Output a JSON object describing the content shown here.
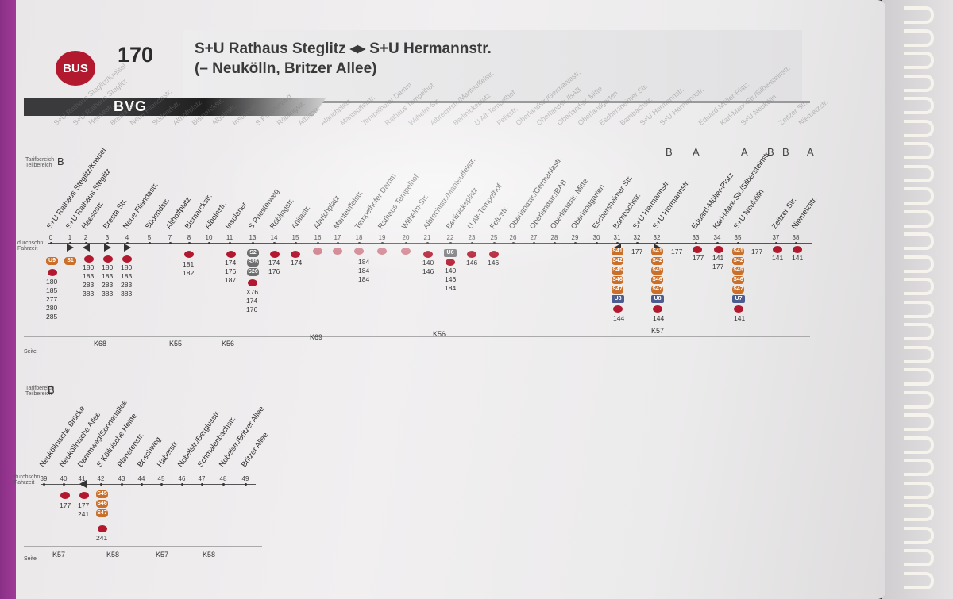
{
  "header": {
    "mode_badge": "BUS",
    "line_number": "170",
    "route_line1": "S+U Rathaus Steglitz ◂▸ S+U Hermannstr.",
    "route_line2": "(– Neukölln, Britzer Allee)",
    "operator": "BVG"
  },
  "labels": {
    "tarif": "Tarifbereich\nTeilbereich",
    "fahrzeit": "durchschn.\nFahrzeit",
    "seite": "Seite"
  },
  "section1": {
    "tarif_zone": "B",
    "top_zones": [
      "B",
      "A",
      "A",
      "B",
      "B",
      "A"
    ],
    "stops": [
      {
        "name": "S+U Rathaus Steglitz/Kreisel",
        "time": "0"
      },
      {
        "name": "S+U Rathaus Steglitz",
        "time": "1"
      },
      {
        "name": "Heesestr.",
        "time": "2"
      },
      {
        "name": "Bresta Str.",
        "time": "3"
      },
      {
        "name": "Neue Filandastr.",
        "time": "4"
      },
      {
        "name": "Südendstr.",
        "time": "5"
      },
      {
        "name": "Althoffplatz",
        "time": "7"
      },
      {
        "name": "Bismarckstr.",
        "time": "8"
      },
      {
        "name": "Alboinstr.",
        "time": "10"
      },
      {
        "name": "Insulaner",
        "time": "11"
      },
      {
        "name": "S Priesterweg",
        "time": "13"
      },
      {
        "name": "Röblingstr.",
        "time": "14"
      },
      {
        "name": "Attilastr.",
        "time": "15"
      },
      {
        "name": "Alarichplatz",
        "time": "16"
      },
      {
        "name": "Manteuffelstr.",
        "time": "17"
      },
      {
        "name": "Tempelhofer Damm",
        "time": "18"
      },
      {
        "name": "Rathaus Tempelhof",
        "time": "19"
      },
      {
        "name": "Wilhelm-Str.",
        "time": "20"
      },
      {
        "name": "Albrechtstr./Manteuffelstr.",
        "time": "21"
      },
      {
        "name": "Berlinickeplatz",
        "time": "22"
      },
      {
        "name": "U Alt-Tempelhof",
        "time": "23"
      },
      {
        "name": "Felixstr.",
        "time": "25"
      },
      {
        "name": "Oberlandstr./Germaniastr.",
        "time": "26"
      },
      {
        "name": "Oberlandstr./BAB",
        "time": "27"
      },
      {
        "name": "Oberlandstr. Mitte",
        "time": "28"
      },
      {
        "name": "Oberlandgarten",
        "time": "29"
      },
      {
        "name": "Eschersheimer Str.",
        "time": "30"
      },
      {
        "name": "Bambachstr.",
        "time": "31"
      },
      {
        "name": "S+U Hermannstr.",
        "time": "32"
      },
      {
        "name": "S+U Hermannstr.",
        "time": "32"
      },
      {
        "name": "Eduard-Müller-Platz",
        "time": "33"
      },
      {
        "name": "Karl-Marx-Str./Silbersteinstr.",
        "time": "34"
      },
      {
        "name": "S+U Neukölln",
        "time": "35"
      },
      {
        "name": "Zeitzer Str.",
        "time": "37"
      },
      {
        "name": "Niemetzstr.",
        "time": "38"
      }
    ],
    "conn_col1": [
      "180",
      "185",
      "277",
      "280",
      "285"
    ],
    "conn_heese": [
      "180",
      "183",
      "283",
      "383"
    ],
    "conn_bresta": [
      "180",
      "183",
      "283",
      "383"
    ],
    "conn_neue": [
      "180",
      "183",
      "283",
      "383"
    ],
    "conn_bismarck": [
      "181",
      "182"
    ],
    "conn_insulaner": [
      "174",
      "176",
      "187"
    ],
    "conn_priester": [
      "X76",
      "174",
      "176"
    ],
    "conn_roebling": [
      "174",
      "176"
    ],
    "conn_attila": [
      "174"
    ],
    "conn_mid": [
      "184",
      "184",
      "184"
    ],
    "conn_alt": [
      "140",
      "146",
      "184"
    ],
    "conn_albrecht": [
      "140",
      "146"
    ],
    "conn_felix": [
      "146"
    ],
    "conn_ober": [
      "146"
    ],
    "conn_herm1": [
      "177",
      "144"
    ],
    "conn_herm2": [
      "177",
      "144"
    ],
    "conn_eduard": [
      "177"
    ],
    "conn_karl": [
      "141",
      "177"
    ],
    "conn_neukoelln": [
      "177",
      "141"
    ],
    "conn_zeitzer": [
      "141"
    ],
    "conn_niemetz": [
      "141"
    ],
    "s_badges": [
      "S41",
      "S42",
      "S45",
      "S46",
      "S47"
    ],
    "s_alt": [
      "S2",
      "S25",
      "S26"
    ],
    "u_badges": {
      "u6": "U6",
      "u8": "U8",
      "u7": "U7"
    },
    "rail_s1": "S1",
    "rail_u9": "U9",
    "page_refs": [
      {
        "label": "K68"
      },
      {
        "label": "K55"
      },
      {
        "label": "K56"
      },
      {
        "label": "K69"
      },
      {
        "label": "K56"
      },
      {
        "label": "K57"
      }
    ]
  },
  "section2": {
    "tarif_zone": "B",
    "stops": [
      {
        "name": "Neuköllnische Brücke",
        "time": "39"
      },
      {
        "name": "Neuköllnische Allee",
        "time": "40"
      },
      {
        "name": "Dammweg/Sonnenallee",
        "time": "41"
      },
      {
        "name": "S Köllnische Heide",
        "time": "42"
      },
      {
        "name": "Planetenstr.",
        "time": "43"
      },
      {
        "name": "Boschweg",
        "time": "44"
      },
      {
        "name": "Haberstr.",
        "time": "45"
      },
      {
        "name": "Nobelstr./Bergiusstr.",
        "time": "46"
      },
      {
        "name": "Schmalenbachstr.",
        "time": "47"
      },
      {
        "name": "Nobelstr./Britzer Allee",
        "time": "48"
      },
      {
        "name": "Britzer Allee",
        "time": "49"
      }
    ],
    "conn_a": [
      "177"
    ],
    "conn_b": [
      "177",
      "241"
    ],
    "conn_c": [
      "241"
    ],
    "s_badges": [
      "S45",
      "S46",
      "S47"
    ],
    "page_refs": [
      {
        "label": "K57"
      },
      {
        "label": "K58"
      },
      {
        "label": "K57"
      },
      {
        "label": "K58"
      }
    ]
  }
}
